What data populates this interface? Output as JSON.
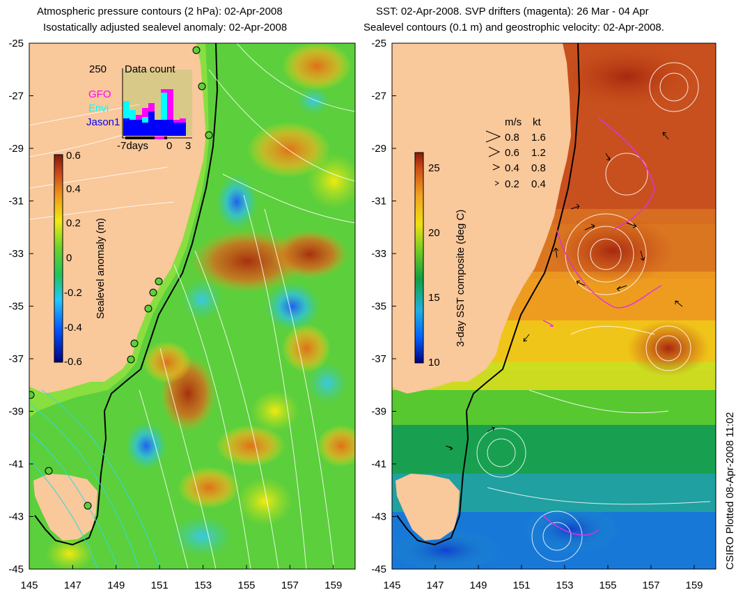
{
  "left_panel": {
    "title_line1": "Atmospheric pressure contours (2 hPa): 02-Apr-2008",
    "title_line2": "Isostatically adjusted sealevel anomaly: 02-Apr-2008",
    "colorbar_label": "Sealevel anomaly (m)",
    "colorbar_ticks": [
      "0.6",
      "0.4",
      "0.2",
      "0",
      "-0.2",
      "-0.4",
      "-0.6"
    ],
    "inset": {
      "title": "Data count",
      "max_label": "250",
      "legend": [
        {
          "name": "GFO",
          "color": "#ff00ff"
        },
        {
          "name": "Envi",
          "color": "#00ffff"
        },
        {
          "name": "Jason1",
          "color": "#0000ff"
        }
      ],
      "x_ticks": [
        "-7days",
        "0",
        "3"
      ]
    }
  },
  "right_panel": {
    "title_line1": "SST: 02-Apr-2008. SVP drifters (magenta): 26 Mar - 04 Apr",
    "title_line2": "Sealevel contours (0.1 m) and geostrophic velocity: 02-Apr-2008.",
    "colorbar_label": "3-day SST composite (deg C)",
    "colorbar_ticks": [
      "25",
      "20",
      "15",
      "10"
    ],
    "velocity_legend": {
      "header_ms": "m/s",
      "header_kt": "kt",
      "rows": [
        {
          "ms": "0.8",
          "kt": "1.6"
        },
        {
          "ms": "0.6",
          "kt": "1.2"
        },
        {
          "ms": "0.4",
          "kt": "0.8"
        },
        {
          "ms": "0.2",
          "kt": "0.4"
        }
      ]
    }
  },
  "axes": {
    "lat_ticks": [
      "-25",
      "-27",
      "-29",
      "-31",
      "-33",
      "-35",
      "-37",
      "-39",
      "-41",
      "-43",
      "-45"
    ],
    "lon_ticks": [
      "145",
      "147",
      "149",
      "151",
      "153",
      "155",
      "157",
      "159"
    ]
  },
  "credit": "CSIRO Plotted 08-Apr-2008 11:02",
  "colors": {
    "land": "#f9c89b",
    "anomaly_bg": "#5ccf3c",
    "sst_warm": "#c8501e"
  }
}
